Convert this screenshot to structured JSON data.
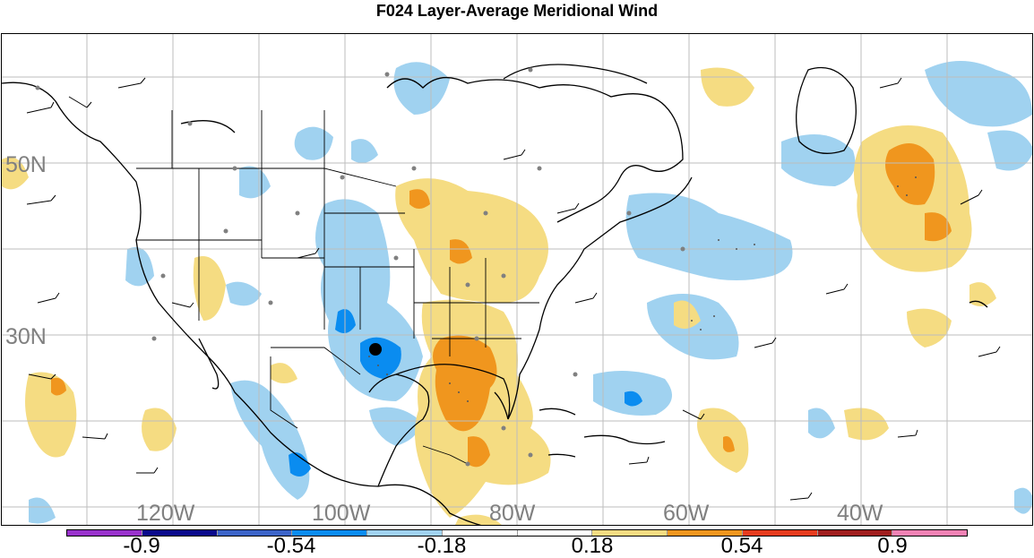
{
  "title": "F024 Layer-Average Meridional Wind",
  "lat_labels": [
    "50N",
    "30N"
  ],
  "lon_labels": [
    "120W",
    "100W",
    "80W",
    "60W",
    "40W"
  ],
  "colorbar": {
    "colors": [
      "#9932cc",
      "#0a0a8c",
      "#3c64c8",
      "#0a8cf0",
      "#a0d2f0",
      "#ffffff",
      "#ffffff",
      "#f5dc82",
      "#f0961e",
      "#e63c1e",
      "#a01e1e",
      "#f082b4"
    ],
    "labels": [
      "-0.9",
      "-0.54",
      "-0.18",
      "0.18",
      "0.54",
      "0.9"
    ]
  },
  "marker": {
    "name": "station",
    "color": "#000000"
  },
  "contour_colors": {
    "light_blue": "#a0d2f0",
    "blue": "#0a8cf0",
    "light_yellow": "#f5dc82",
    "orange": "#f0961e"
  }
}
